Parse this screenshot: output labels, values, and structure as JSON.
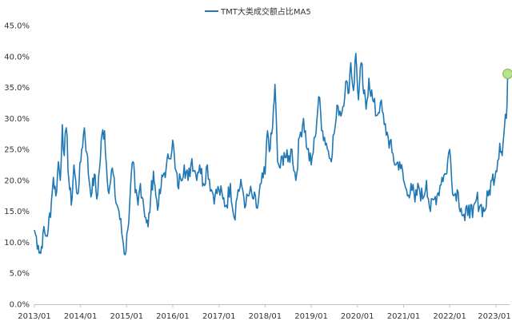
{
  "chart_data": {
    "type": "line",
    "series": [
      {
        "name": "TMT大类成交额占比MA5",
        "color": "#1f77b4",
        "anchors": [
          [
            "2013-01-01",
            12.0
          ],
          [
            "2013-02-01",
            9.5
          ],
          [
            "2013-02-20",
            8.2
          ],
          [
            "2013-03-10",
            11.5
          ],
          [
            "2013-04-01",
            11.0
          ],
          [
            "2013-04-20",
            12.0
          ],
          [
            "2013-05-15",
            16.5
          ],
          [
            "2013-06-01",
            20.5
          ],
          [
            "2013-06-20",
            17.5
          ],
          [
            "2013-07-10",
            23.0
          ],
          [
            "2013-07-25",
            20.0
          ],
          [
            "2013-08-10",
            29.0
          ],
          [
            "2013-08-25",
            24.0
          ],
          [
            "2013-09-10",
            28.5
          ],
          [
            "2013-10-01",
            20.0
          ],
          [
            "2013-10-20",
            16.0
          ],
          [
            "2013-11-10",
            22.5
          ],
          [
            "2013-12-01",
            18.0
          ],
          [
            "2013-12-20",
            19.5
          ],
          [
            "2014-01-10",
            25.0
          ],
          [
            "2014-02-01",
            28.5
          ],
          [
            "2014-02-20",
            24.5
          ],
          [
            "2014-03-10",
            20.0
          ],
          [
            "2014-04-01",
            18.0
          ],
          [
            "2014-04-20",
            21.0
          ],
          [
            "2014-05-10",
            17.0
          ],
          [
            "2014-06-01",
            22.0
          ],
          [
            "2014-06-20",
            27.5
          ],
          [
            "2014-07-10",
            28.0
          ],
          [
            "2014-08-01",
            20.0
          ],
          [
            "2014-08-20",
            19.0
          ],
          [
            "2014-09-10",
            22.0
          ],
          [
            "2014-10-01",
            17.5
          ],
          [
            "2014-11-01",
            15.0
          ],
          [
            "2014-12-01",
            10.5
          ],
          [
            "2014-12-20",
            8.0
          ],
          [
            "2015-01-10",
            12.0
          ],
          [
            "2015-02-01",
            19.0
          ],
          [
            "2015-02-20",
            23.0
          ],
          [
            "2015-03-10",
            18.0
          ],
          [
            "2015-04-01",
            16.0
          ],
          [
            "2015-04-20",
            19.5
          ],
          [
            "2015-05-10",
            17.0
          ],
          [
            "2015-06-01",
            14.0
          ],
          [
            "2015-06-20",
            12.5
          ],
          [
            "2015-07-10",
            17.0
          ],
          [
            "2015-08-01",
            21.5
          ],
          [
            "2015-08-20",
            17.5
          ],
          [
            "2015-09-10",
            16.0
          ],
          [
            "2015-10-01",
            19.0
          ],
          [
            "2015-10-20",
            21.0
          ],
          [
            "2015-11-10",
            22.0
          ],
          [
            "2015-12-01",
            23.5
          ],
          [
            "2016-01-01",
            26.5
          ],
          [
            "2016-01-20",
            22.0
          ],
          [
            "2016-02-10",
            19.0
          ],
          [
            "2016-03-01",
            20.5
          ],
          [
            "2016-04-01",
            22.5
          ],
          [
            "2016-05-01",
            20.0
          ],
          [
            "2016-06-01",
            23.5
          ],
          [
            "2016-07-01",
            21.0
          ],
          [
            "2016-08-01",
            22.5
          ],
          [
            "2016-09-01",
            19.5
          ],
          [
            "2016-10-01",
            22.5
          ],
          [
            "2016-11-01",
            18.5
          ],
          [
            "2016-12-01",
            17.5
          ],
          [
            "2017-01-01",
            18.5
          ],
          [
            "2017-02-01",
            17.0
          ],
          [
            "2017-03-01",
            16.0
          ],
          [
            "2017-04-01",
            19.5
          ],
          [
            "2017-05-01",
            14.0
          ],
          [
            "2017-06-01",
            18.5
          ],
          [
            "2017-07-01",
            19.0
          ],
          [
            "2017-08-01",
            16.0
          ],
          [
            "2017-09-01",
            18.0
          ],
          [
            "2017-10-01",
            17.0
          ],
          [
            "2017-11-01",
            15.5
          ],
          [
            "2017-12-01",
            19.5
          ],
          [
            "2018-01-01",
            21.0
          ],
          [
            "2018-01-20",
            28.0
          ],
          [
            "2018-02-10",
            25.0
          ],
          [
            "2018-03-01",
            28.5
          ],
          [
            "2018-03-20",
            35.5
          ],
          [
            "2018-04-10",
            23.0
          ],
          [
            "2018-05-01",
            22.0
          ],
          [
            "2018-06-01",
            24.5
          ],
          [
            "2018-07-01",
            23.0
          ],
          [
            "2018-08-01",
            25.0
          ],
          [
            "2018-09-01",
            20.0
          ],
          [
            "2018-10-01",
            27.0
          ],
          [
            "2018-11-01",
            30.0
          ],
          [
            "2018-12-01",
            25.0
          ],
          [
            "2019-01-01",
            22.5
          ],
          [
            "2019-02-01",
            27.0
          ],
          [
            "2019-03-01",
            33.5
          ],
          [
            "2019-04-01",
            28.0
          ],
          [
            "2019-05-01",
            26.0
          ],
          [
            "2019-06-01",
            23.5
          ],
          [
            "2019-07-01",
            27.5
          ],
          [
            "2019-08-01",
            32.0
          ],
          [
            "2019-09-01",
            31.0
          ],
          [
            "2019-10-01",
            36.0
          ],
          [
            "2019-10-20",
            34.0
          ],
          [
            "2019-11-10",
            39.0
          ],
          [
            "2019-12-01",
            34.5
          ],
          [
            "2019-12-20",
            40.5
          ],
          [
            "2020-01-10",
            33.0
          ],
          [
            "2020-02-01",
            39.0
          ],
          [
            "2020-02-20",
            34.0
          ],
          [
            "2020-03-10",
            31.5
          ],
          [
            "2020-04-01",
            36.5
          ],
          [
            "2020-05-01",
            33.0
          ],
          [
            "2020-06-01",
            30.5
          ],
          [
            "2020-07-01",
            32.5
          ],
          [
            "2020-08-01",
            29.0
          ],
          [
            "2020-09-01",
            27.0
          ],
          [
            "2020-10-01",
            24.5
          ],
          [
            "2020-11-01",
            22.5
          ],
          [
            "2020-12-01",
            23.0
          ],
          [
            "2021-01-01",
            20.0
          ],
          [
            "2021-02-01",
            17.5
          ],
          [
            "2021-03-01",
            19.5
          ],
          [
            "2021-04-01",
            16.5
          ],
          [
            "2021-05-01",
            19.0
          ],
          [
            "2021-06-01",
            17.0
          ],
          [
            "2021-07-01",
            20.0
          ],
          [
            "2021-08-01",
            15.0
          ],
          [
            "2021-09-01",
            17.0
          ],
          [
            "2021-10-01",
            18.0
          ],
          [
            "2021-11-01",
            20.5
          ],
          [
            "2021-12-01",
            21.0
          ],
          [
            "2022-01-01",
            25.0
          ],
          [
            "2022-02-01",
            17.5
          ],
          [
            "2022-03-01",
            18.5
          ],
          [
            "2022-04-01",
            15.5
          ],
          [
            "2022-05-01",
            13.5
          ],
          [
            "2022-06-01",
            16.0
          ],
          [
            "2022-07-01",
            14.0
          ],
          [
            "2022-08-01",
            17.0
          ],
          [
            "2022-09-01",
            16.0
          ],
          [
            "2022-10-01",
            15.0
          ],
          [
            "2022-11-01",
            17.5
          ],
          [
            "2022-12-01",
            20.0
          ],
          [
            "2023-01-01",
            21.5
          ],
          [
            "2023-02-01",
            26.0
          ],
          [
            "2023-02-20",
            24.0
          ],
          [
            "2023-03-10",
            28.5
          ],
          [
            "2023-03-25",
            30.0
          ],
          [
            "2023-04-05",
            37.2
          ]
        ]
      }
    ],
    "highlight_point": {
      "x": "2023-04-05",
      "y": 37.2,
      "color": "#b7e38e",
      "edge": "#7db355"
    },
    "title": "",
    "xlabel": "",
    "ylabel": "",
    "legend": "top-center",
    "grid": false,
    "x_range": [
      "2013-01-01",
      "2023-04-20"
    ],
    "x_ticks": [
      "2013/01",
      "2014/01",
      "2015/01",
      "2016/01",
      "2017/01",
      "2018/01",
      "2019/01",
      "2020/01",
      "2021/01",
      "2022/01",
      "2023/01"
    ],
    "ylim": [
      0,
      45
    ],
    "y_ticks": [
      0,
      5,
      10,
      15,
      20,
      25,
      30,
      35,
      40,
      45
    ],
    "y_tick_labels": [
      "0.0%",
      "5.0%",
      "10.0%",
      "15.0%",
      "20.0%",
      "25.0%",
      "30.0%",
      "35.0%",
      "40.0%",
      "45.0%"
    ]
  }
}
